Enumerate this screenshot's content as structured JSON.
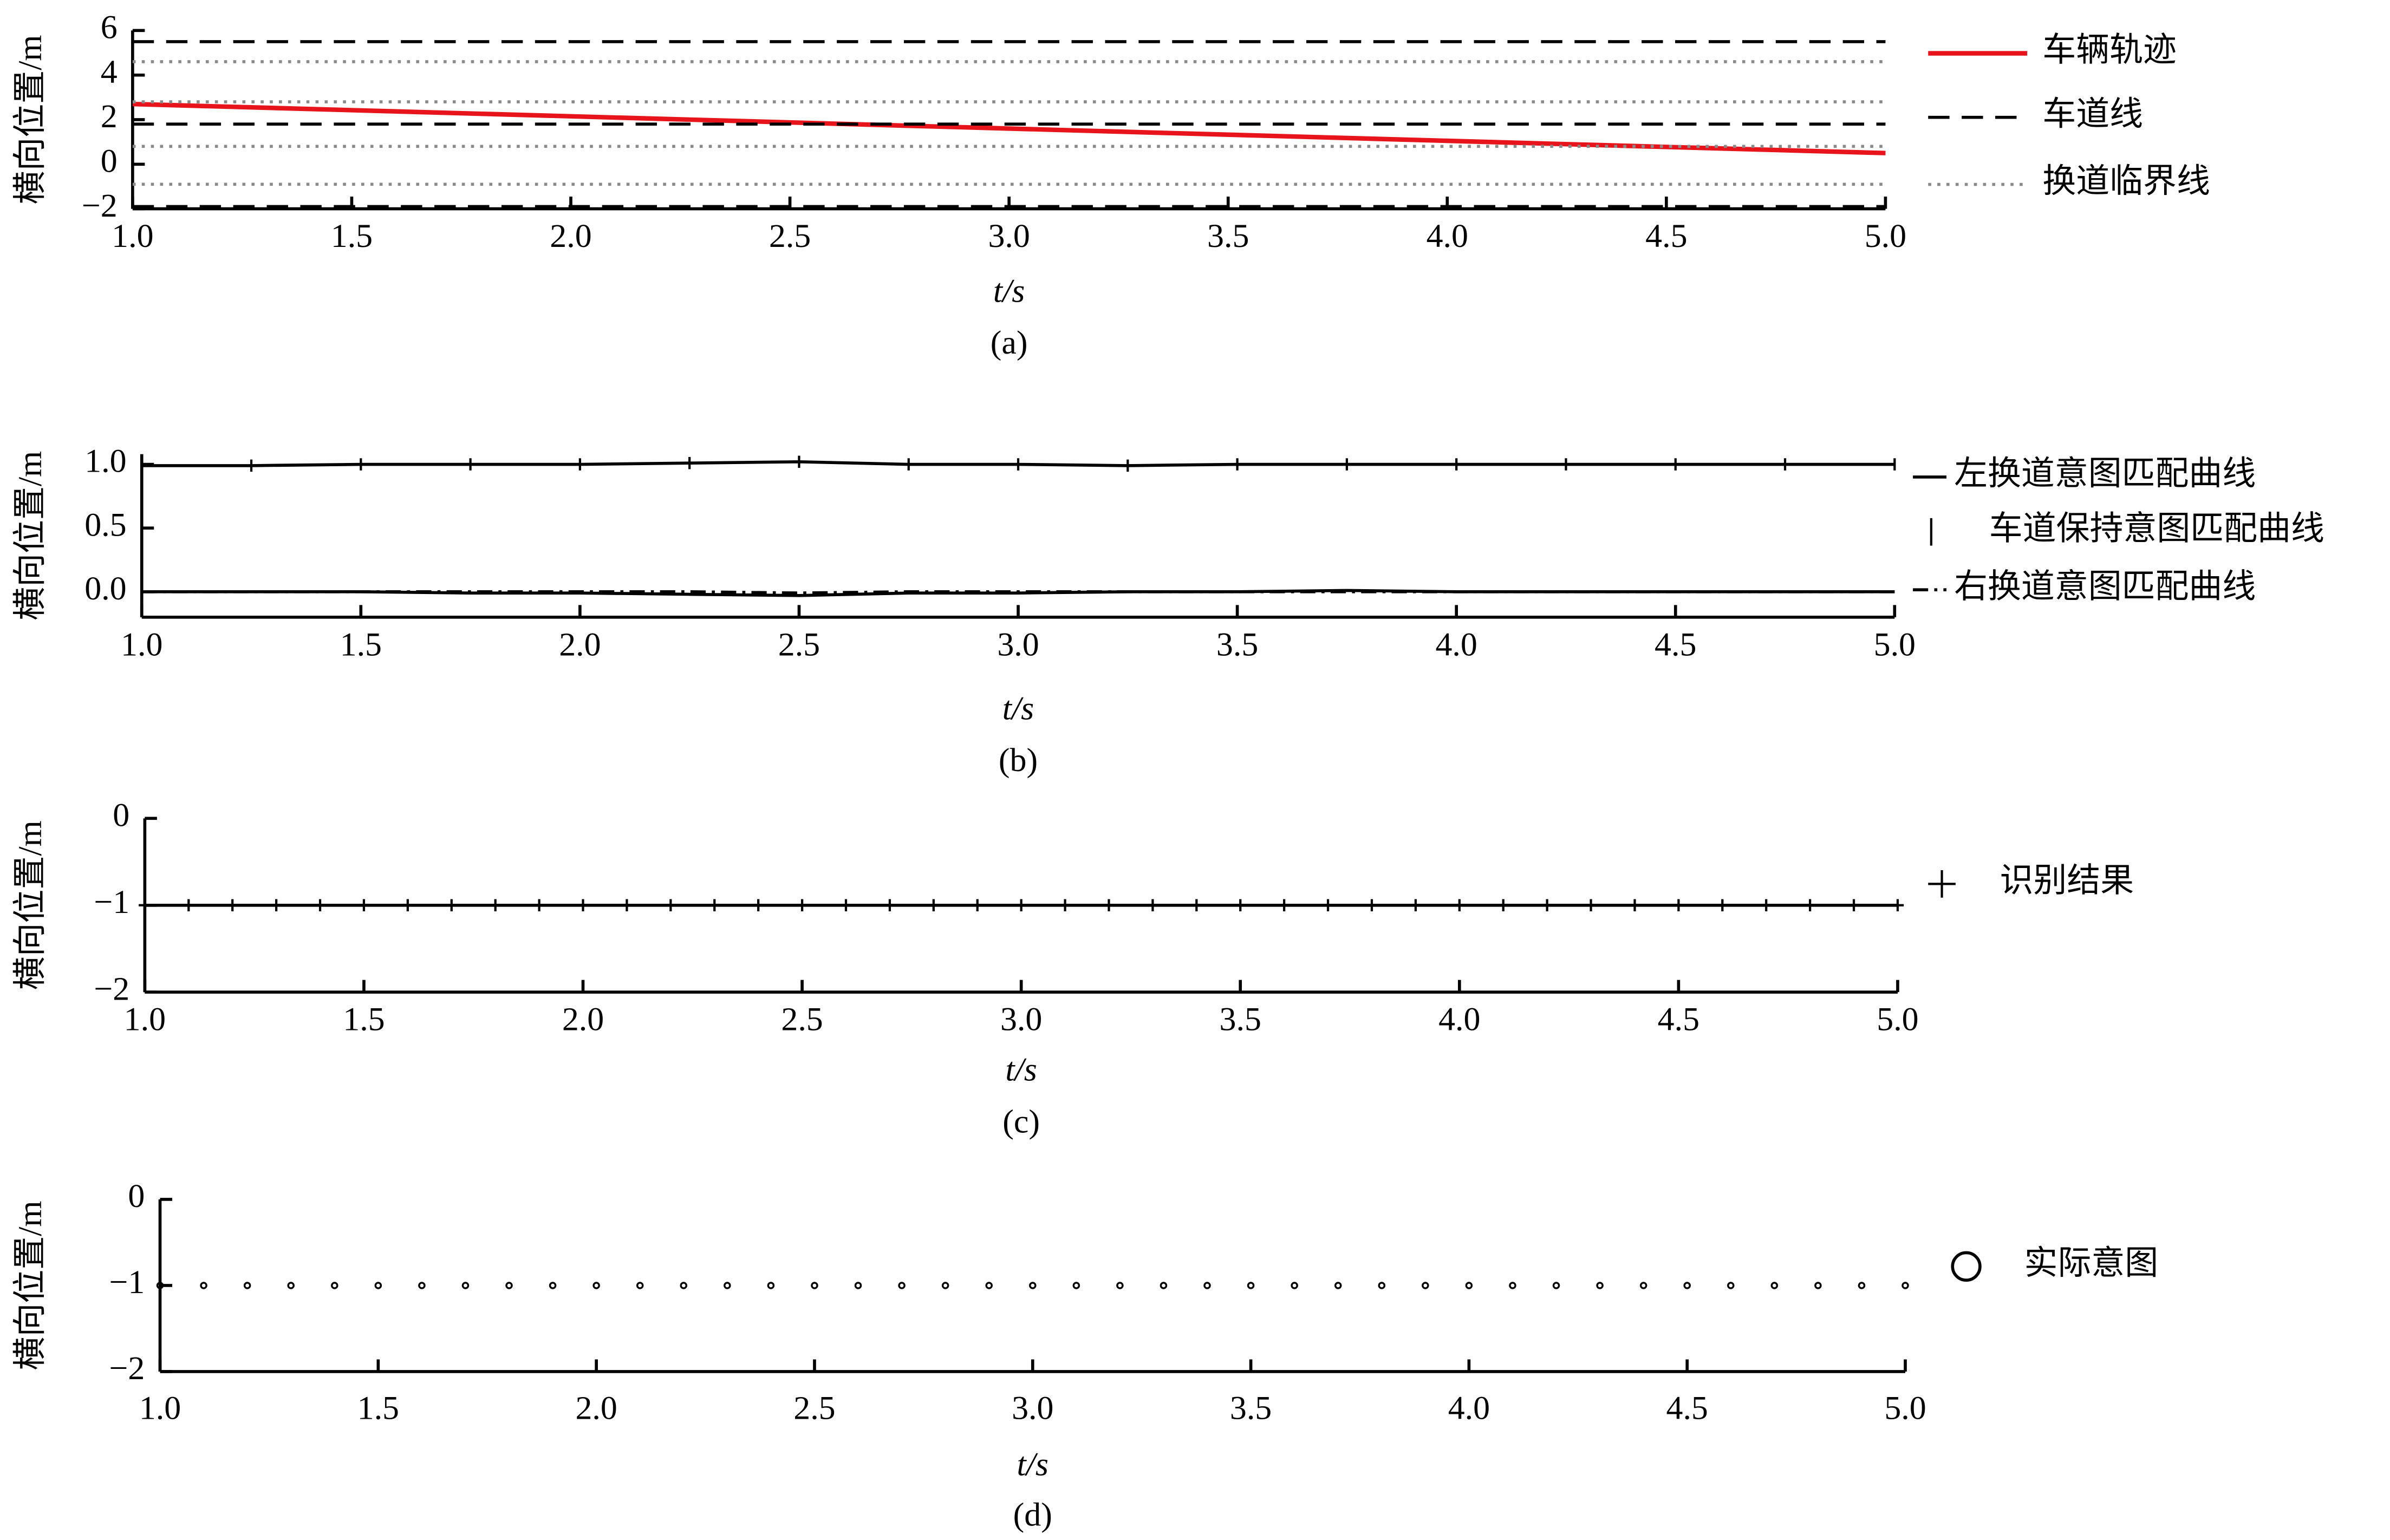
{
  "chart_data": [
    {
      "type": "line",
      "ylabel": "横向位置/m",
      "xlabel": "t/s",
      "caption": "(a)",
      "xlim": [
        1,
        5
      ],
      "xticks": [
        {
          "value": 1,
          "label": "1.0"
        },
        {
          "value": 1.5,
          "label": "1.5"
        },
        {
          "value": 2,
          "label": "2.0"
        },
        {
          "value": 2.5,
          "label": "2.5"
        },
        {
          "value": 3,
          "label": "3.0"
        },
        {
          "value": 3.5,
          "label": "3.5"
        },
        {
          "value": 4,
          "label": "4.0"
        },
        {
          "value": 4.5,
          "label": "4.5"
        },
        {
          "value": 5,
          "label": "5.0"
        }
      ],
      "ylim": [
        -2,
        6
      ],
      "yticks": [
        {
          "value": -2,
          "label": "−2"
        },
        0,
        2,
        4,
        6
      ],
      "series": [
        {
          "name": "车辆轨迹",
          "color": "#e8141b",
          "line_style": "solid",
          "x": [
            1,
            5
          ],
          "values": [
            2.7,
            0.5
          ]
        },
        {
          "name": "车道线",
          "color": "#000000",
          "line_style": "dashed",
          "levels": [
            5.5,
            1.8,
            -1.9
          ]
        },
        {
          "name": "换道临界线",
          "color": "#8a8a8a",
          "line_style": "dotted",
          "levels": [
            4.6,
            2.8,
            0.8,
            -0.9
          ]
        }
      ]
    },
    {
      "type": "line",
      "ylabel": "横向位置/m",
      "xlabel": "t/s",
      "caption": "(b)",
      "xlim": [
        1,
        5
      ],
      "xticks": [
        {
          "value": 1,
          "label": "1.0"
        },
        {
          "value": 1.5,
          "label": "1.5"
        },
        {
          "value": 2,
          "label": "2.0"
        },
        {
          "value": 2.5,
          "label": "2.5"
        },
        {
          "value": 3,
          "label": "3.0"
        },
        {
          "value": 3.5,
          "label": "3.5"
        },
        {
          "value": 4,
          "label": "4.0"
        },
        {
          "value": 4.5,
          "label": "4.5"
        },
        {
          "value": 5,
          "label": "5.0"
        }
      ],
      "ylim": [
        -0.2,
        1.08
      ],
      "yticks": [
        {
          "value": 0,
          "label": "0.0"
        },
        0.5,
        {
          "value": 1,
          "label": "1.0"
        }
      ],
      "series": [
        {
          "name": "左换道意图匹配曲线",
          "color": "#000000",
          "line_style": "solid",
          "x": [
            1,
            1.25,
            1.5,
            1.75,
            2,
            2.25,
            2.5,
            2.75,
            3,
            3.25,
            3.5,
            3.75,
            4,
            4.25,
            4.5,
            4.75,
            5
          ],
          "values": [
            0,
            0,
            0,
            -0.01,
            -0.01,
            -0.02,
            -0.03,
            -0.01,
            -0.01,
            0,
            0,
            0.01,
            0,
            0,
            0,
            0,
            0
          ]
        },
        {
          "name": "车道保持意图匹配曲线",
          "color": "#000000",
          "line_style": "solid",
          "marker": "|",
          "x": [
            1,
            1.25,
            1.5,
            1.75,
            2,
            2.25,
            2.5,
            2.75,
            3,
            3.25,
            3.5,
            3.75,
            4,
            4.25,
            4.5,
            4.75,
            5
          ],
          "values": [
            0.99,
            0.99,
            1,
            1,
            1,
            1.01,
            1.02,
            1,
            1,
            0.99,
            1,
            1,
            1,
            1,
            1,
            1,
            1
          ]
        },
        {
          "name": "右换道意图匹配曲线",
          "color": "#000000",
          "line_style": "dashdot",
          "x": [
            1,
            1.25,
            1.5,
            1.75,
            2,
            2.25,
            2.5,
            2.75,
            3,
            3.25,
            3.5,
            3.75,
            4,
            4.25,
            4.5,
            4.75,
            5
          ],
          "values": [
            0,
            0,
            0,
            0,
            0,
            0,
            -0.01,
            0,
            0,
            0,
            0,
            0,
            0,
            0,
            0,
            0,
            0
          ]
        }
      ]
    },
    {
      "type": "line",
      "ylabel": "横向位置/m",
      "xlabel": "t/s",
      "caption": "(c)",
      "xlim": [
        1,
        5
      ],
      "xticks": [
        {
          "value": 1,
          "label": "1.0"
        },
        {
          "value": 1.5,
          "label": "1.5"
        },
        {
          "value": 2,
          "label": "2.0"
        },
        {
          "value": 2.5,
          "label": "2.5"
        },
        {
          "value": 3,
          "label": "3.0"
        },
        {
          "value": 3.5,
          "label": "3.5"
        },
        {
          "value": 4,
          "label": "4.0"
        },
        {
          "value": 4.5,
          "label": "4.5"
        },
        {
          "value": 5,
          "label": "5.0"
        }
      ],
      "ylim": [
        -2,
        0
      ],
      "yticks": [
        {
          "value": -2,
          "label": "−2"
        },
        {
          "value": -1,
          "label": "−1"
        },
        0
      ],
      "series": [
        {
          "name": "识别结果",
          "color": "#000000",
          "line_style": "solid",
          "marker": "+",
          "x": [
            1,
            1.1,
            1.2,
            1.3,
            1.4,
            1.5,
            1.6,
            1.7,
            1.8,
            1.9,
            2,
            2.1,
            2.2,
            2.3,
            2.4,
            2.5,
            2.6,
            2.7,
            2.8,
            2.9,
            3,
            3.1,
            3.2,
            3.3,
            3.4,
            3.5,
            3.6,
            3.7,
            3.8,
            3.9,
            4,
            4.1,
            4.2,
            4.3,
            4.4,
            4.5,
            4.6,
            4.7,
            4.8,
            4.9,
            5
          ],
          "values": [
            -1,
            -1,
            -1,
            -1,
            -1,
            -1,
            -1,
            -1,
            -1,
            -1,
            -1,
            -1,
            -1,
            -1,
            -1,
            -1,
            -1,
            -1,
            -1,
            -1,
            -1,
            -1,
            -1,
            -1,
            -1,
            -1,
            -1,
            -1,
            -1,
            -1,
            -1,
            -1,
            -1,
            -1,
            -1,
            -1,
            -1,
            -1,
            -1,
            -1,
            -1
          ]
        }
      ]
    },
    {
      "type": "line",
      "ylabel": "横向位置/m",
      "xlabel": "t/s",
      "caption": "(d)",
      "xlim": [
        1,
        5
      ],
      "xticks": [
        {
          "value": 1,
          "label": "1.0"
        },
        {
          "value": 1.5,
          "label": "1.5"
        },
        {
          "value": 2,
          "label": "2.0"
        },
        {
          "value": 2.5,
          "label": "2.5"
        },
        {
          "value": 3,
          "label": "3.0"
        },
        {
          "value": 3.5,
          "label": "3.5"
        },
        {
          "value": 4,
          "label": "4.0"
        },
        {
          "value": 4.5,
          "label": "4.5"
        },
        {
          "value": 5,
          "label": "5.0"
        }
      ],
      "ylim": [
        -2,
        0
      ],
      "yticks": [
        {
          "value": -2,
          "label": "−2"
        },
        {
          "value": -1,
          "label": "−1"
        },
        0
      ],
      "series": [
        {
          "name": "实际意图",
          "color": "#000000",
          "line_style": "none",
          "marker": "o",
          "x": [
            1,
            1.1,
            1.2,
            1.3,
            1.4,
            1.5,
            1.6,
            1.7,
            1.8,
            1.9,
            2,
            2.1,
            2.2,
            2.3,
            2.4,
            2.5,
            2.6,
            2.7,
            2.8,
            2.9,
            3,
            3.1,
            3.2,
            3.3,
            3.4,
            3.5,
            3.6,
            3.7,
            3.8,
            3.9,
            4,
            4.1,
            4.2,
            4.3,
            4.4,
            4.5,
            4.6,
            4.7,
            4.8,
            4.9,
            5
          ],
          "values": [
            -1,
            -1,
            -1,
            -1,
            -1,
            -1,
            -1,
            -1,
            -1,
            -1,
            -1,
            -1,
            -1,
            -1,
            -1,
            -1,
            -1,
            -1,
            -1,
            -1,
            -1,
            -1,
            -1,
            -1,
            -1,
            -1,
            -1,
            -1,
            -1,
            -1,
            -1,
            -1,
            -1,
            -1,
            -1,
            -1,
            -1,
            -1,
            -1,
            -1,
            -1
          ]
        }
      ]
    }
  ]
}
